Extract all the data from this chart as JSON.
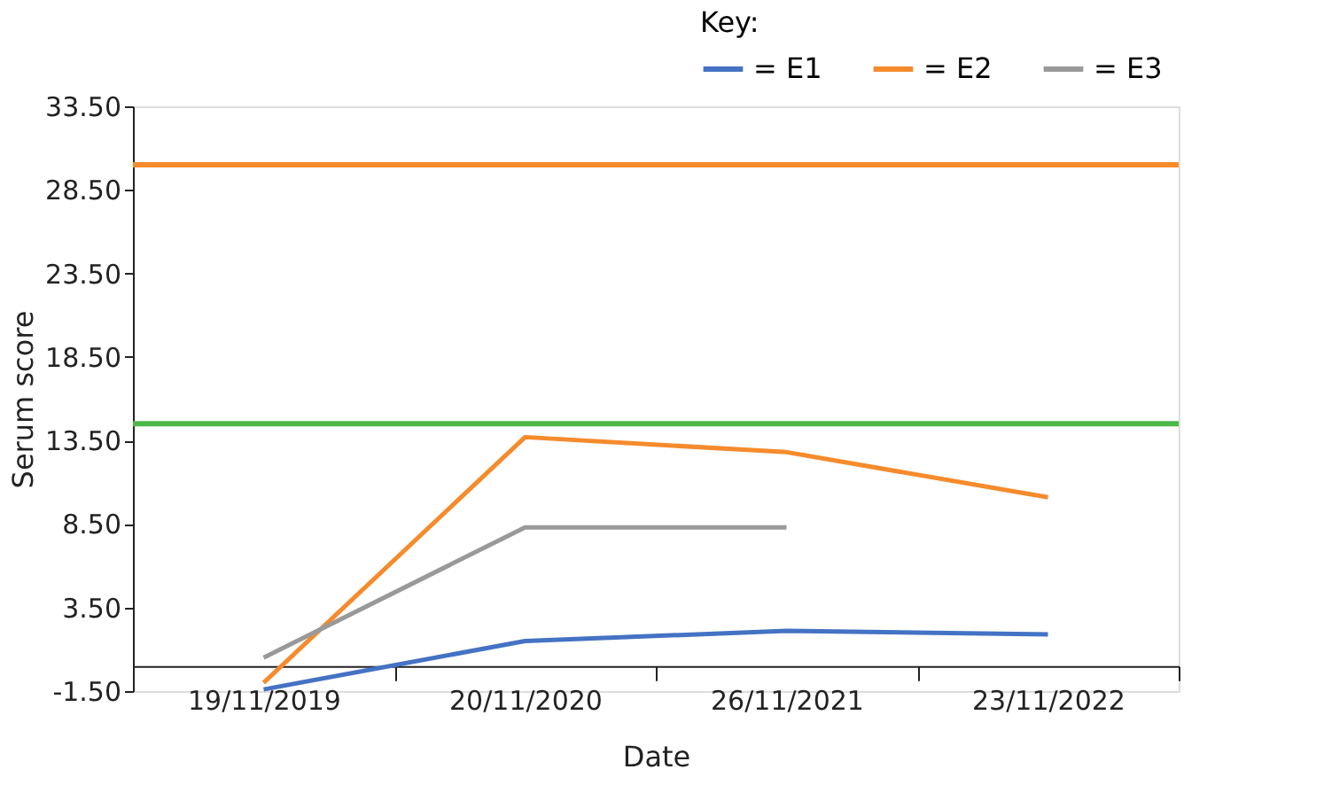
{
  "chart_data": {
    "type": "line",
    "xlabel": "Date",
    "ylabel": "Serum score",
    "legend_title": "Key:",
    "legend": "top right",
    "categories": [
      "19/11/2019",
      "20/11/2020",
      "26/11/2021",
      "23/11/2022"
    ],
    "series": [
      {
        "name": "= E1",
        "color": "#4472c4",
        "values": [
          -1.4,
          1.5,
          2.1,
          1.9
        ]
      },
      {
        "name": "= E2",
        "color": "#f58b2c",
        "values": [
          -1.0,
          13.7,
          12.8,
          10.1
        ]
      },
      {
        "name": "= E3",
        "color": "#999999",
        "values": [
          0.5,
          8.3,
          8.3,
          null
        ]
      }
    ],
    "ylim": [
      -1.5,
      33.5
    ],
    "yticks": [
      {
        "value": -1.5,
        "label": "-1.50"
      },
      {
        "value": 3.5,
        "label": "3.50"
      },
      {
        "value": 8.5,
        "label": "8.50"
      },
      {
        "value": 13.5,
        "label": "13.50"
      },
      {
        "value": 18.5,
        "label": "18.50"
      },
      {
        "value": 23.5,
        "label": "23.50"
      },
      {
        "value": 28.5,
        "label": "28.50"
      },
      {
        "value": 33.5,
        "label": "33.50"
      }
    ],
    "ref_lines": [
      {
        "axis": "y",
        "value": 30,
        "color": "#f58b2c"
      },
      {
        "axis": "y",
        "value": 14.5,
        "color": "#4cb848"
      }
    ],
    "grid": false,
    "line_style": "solid",
    "marker": "none"
  }
}
